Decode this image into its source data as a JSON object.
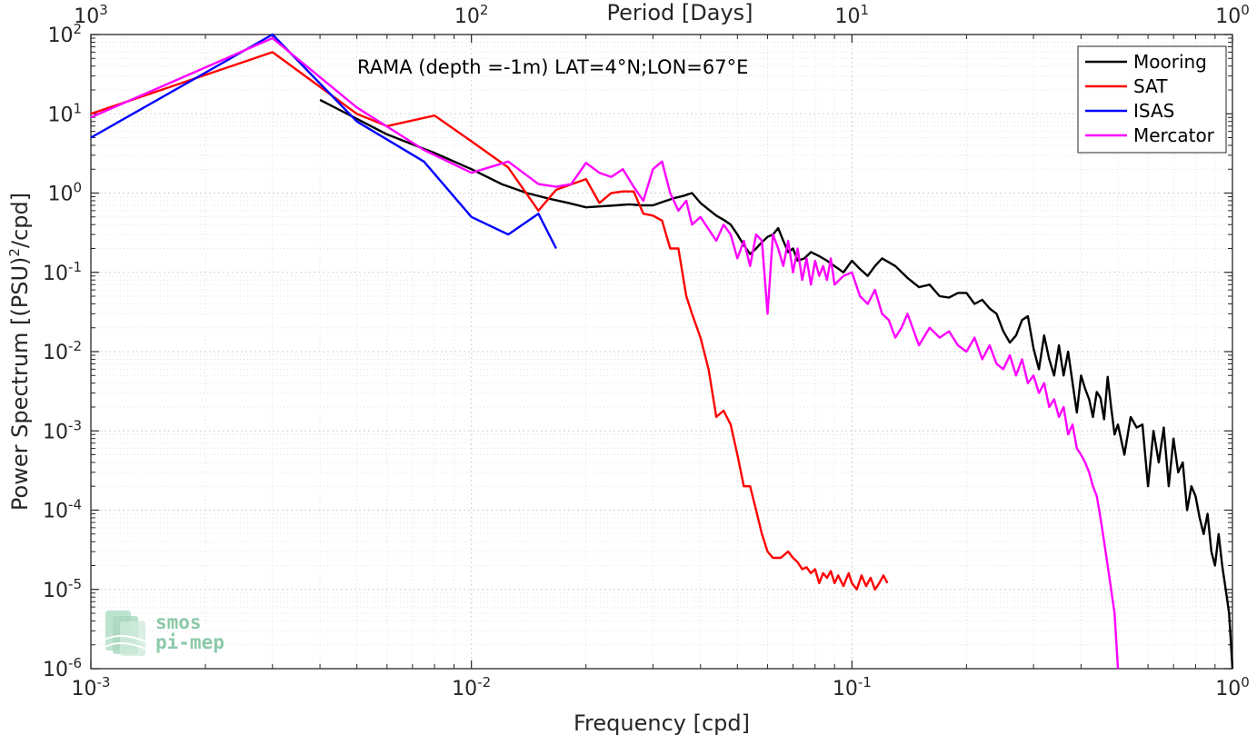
{
  "chart_data": {
    "type": "line",
    "title": "",
    "annotation": "RAMA (depth =-1m) LAT=4°N;LON=67°E",
    "xlabel": "Frequency [cpd]",
    "ylabel": "Power Spectrum [(PSU)",
    "ylabel_sup": "2",
    "ylabel_tail": "/cpd]",
    "top_xlabel": "Period [Days]",
    "x_scale": "log",
    "y_scale": "log",
    "xlim": [
      0.001,
      1
    ],
    "ylim": [
      1e-06,
      100
    ],
    "grid": true,
    "legend_position": "top-right",
    "x_ticks": [
      {
        "value": 0.001,
        "base": "10",
        "exp": "-3"
      },
      {
        "value": 0.01,
        "base": "10",
        "exp": "-2"
      },
      {
        "value": 0.1,
        "base": "10",
        "exp": "-1"
      },
      {
        "value": 1,
        "base": "10",
        "exp": "0"
      }
    ],
    "top_ticks": [
      {
        "value": 0.001,
        "base": "10",
        "exp": "3"
      },
      {
        "value": 0.01,
        "base": "10",
        "exp": "2"
      },
      {
        "value": 0.1,
        "base": "10",
        "exp": "1"
      },
      {
        "value": 1,
        "base": "10",
        "exp": "0"
      }
    ],
    "y_ticks": [
      {
        "value": 100,
        "base": "10",
        "exp": "2"
      },
      {
        "value": 10,
        "base": "10",
        "exp": "1"
      },
      {
        "value": 1,
        "base": "10",
        "exp": "0"
      },
      {
        "value": 0.1,
        "base": "10",
        "exp": "-1"
      },
      {
        "value": 0.01,
        "base": "10",
        "exp": "-2"
      },
      {
        "value": 0.001,
        "base": "10",
        "exp": "-3"
      },
      {
        "value": 0.0001,
        "base": "10",
        "exp": "-4"
      },
      {
        "value": 1e-05,
        "base": "10",
        "exp": "-5"
      },
      {
        "value": 1e-06,
        "base": "10",
        "exp": "-6"
      }
    ],
    "series": [
      {
        "name": "Mooring",
        "color": "#000000",
        "x": [
          0.004,
          0.006,
          0.008,
          0.01,
          0.012,
          0.014,
          0.016,
          0.018,
          0.02,
          0.022,
          0.024,
          0.026,
          0.028,
          0.03,
          0.032,
          0.034,
          0.036,
          0.038,
          0.04,
          0.042,
          0.044,
          0.046,
          0.048,
          0.05,
          0.052,
          0.054,
          0.056,
          0.058,
          0.06,
          0.062,
          0.064,
          0.066,
          0.068,
          0.07,
          0.072,
          0.075,
          0.078,
          0.082,
          0.086,
          0.09,
          0.095,
          0.1,
          0.105,
          0.11,
          0.115,
          0.12,
          0.13,
          0.14,
          0.15,
          0.16,
          0.17,
          0.18,
          0.19,
          0.2,
          0.21,
          0.22,
          0.23,
          0.24,
          0.25,
          0.26,
          0.27,
          0.28,
          0.29,
          0.3,
          0.31,
          0.32,
          0.33,
          0.34,
          0.35,
          0.36,
          0.37,
          0.38,
          0.39,
          0.4,
          0.41,
          0.42,
          0.43,
          0.44,
          0.45,
          0.46,
          0.47,
          0.48,
          0.49,
          0.5,
          0.52,
          0.54,
          0.56,
          0.58,
          0.6,
          0.62,
          0.64,
          0.66,
          0.68,
          0.7,
          0.72,
          0.74,
          0.76,
          0.78,
          0.8,
          0.82,
          0.84,
          0.86,
          0.88,
          0.9,
          0.92,
          0.94,
          0.96,
          0.98,
          1.0
        ],
        "y": [
          15,
          5.5,
          3.2,
          2.0,
          1.3,
          1.0,
          0.85,
          0.75,
          0.66,
          0.68,
          0.7,
          0.72,
          0.7,
          0.7,
          0.78,
          0.86,
          0.92,
          1.0,
          0.75,
          0.62,
          0.52,
          0.46,
          0.4,
          0.3,
          0.22,
          0.17,
          0.2,
          0.24,
          0.28,
          0.3,
          0.36,
          0.25,
          0.18,
          0.2,
          0.14,
          0.15,
          0.18,
          0.16,
          0.14,
          0.12,
          0.1,
          0.14,
          0.11,
          0.09,
          0.12,
          0.15,
          0.12,
          0.085,
          0.065,
          0.07,
          0.05,
          0.048,
          0.055,
          0.055,
          0.04,
          0.045,
          0.035,
          0.03,
          0.018,
          0.013,
          0.016,
          0.025,
          0.028,
          0.011,
          0.006,
          0.016,
          0.008,
          0.005,
          0.012,
          0.005,
          0.01,
          0.004,
          0.0017,
          0.005,
          0.0034,
          0.0025,
          0.0015,
          0.0031,
          0.0026,
          0.0014,
          0.0048,
          0.002,
          0.0009,
          0.0012,
          0.0005,
          0.0015,
          0.0011,
          0.0012,
          0.0002,
          0.001,
          0.0004,
          0.0011,
          0.0002,
          0.0008,
          0.0003,
          0.0004,
          0.0001,
          0.0002,
          0.00015,
          8e-05,
          5e-05,
          9e-05,
          3e-05,
          2e-05,
          5e-05,
          2e-05,
          1e-05,
          5e-06,
          1e-06
        ]
      },
      {
        "name": "SAT",
        "color": "#ff0000",
        "x": [
          0.001,
          0.003,
          0.005,
          0.006,
          0.008,
          0.01,
          0.0125,
          0.015,
          0.0167,
          0.02,
          0.0217,
          0.0233,
          0.025,
          0.0267,
          0.0283,
          0.03,
          0.0317,
          0.0333,
          0.035,
          0.0367,
          0.038,
          0.04,
          0.042,
          0.044,
          0.046,
          0.048,
          0.05,
          0.052,
          0.054,
          0.056,
          0.058,
          0.06,
          0.062,
          0.065,
          0.068,
          0.07,
          0.072,
          0.074,
          0.076,
          0.078,
          0.08,
          0.082,
          0.084,
          0.086,
          0.088,
          0.09,
          0.092,
          0.095,
          0.098,
          0.1,
          0.103,
          0.106,
          0.109,
          0.112,
          0.115,
          0.118,
          0.121,
          0.124
        ],
        "y": [
          10,
          60,
          10,
          7,
          9.5,
          4.5,
          2.1,
          0.6,
          1.1,
          1.5,
          0.75,
          1.0,
          1.05,
          1.05,
          0.55,
          0.52,
          0.45,
          0.2,
          0.2,
          0.05,
          0.03,
          0.015,
          0.006,
          0.0015,
          0.0018,
          0.0012,
          0.0005,
          0.0002,
          0.0002,
          0.0001,
          5e-05,
          3e-05,
          2.5e-05,
          2.5e-05,
          3e-05,
          2.5e-05,
          2.2e-05,
          1.8e-05,
          1.9e-05,
          1.6e-05,
          1.8e-05,
          1.2e-05,
          1.6e-05,
          1.4e-05,
          1.7e-05,
          1.2e-05,
          1.5e-05,
          1.1e-05,
          1.6e-05,
          1.2e-05,
          1e-05,
          1.5e-05,
          1.1e-05,
          1.4e-05,
          1e-05,
          1.2e-05,
          1.5e-05,
          1.2e-05
        ]
      },
      {
        "name": "ISAS",
        "color": "#0000ff",
        "x": [
          0.001,
          0.003,
          0.005,
          0.0075,
          0.01,
          0.0125,
          0.015,
          0.0167
        ],
        "y": [
          5,
          100,
          8,
          2.5,
          0.5,
          0.3,
          0.55,
          0.2
        ]
      },
      {
        "name": "Mercator",
        "color": "#ff00ff",
        "x": [
          0.001,
          0.003,
          0.005,
          0.0075,
          0.01,
          0.0125,
          0.015,
          0.0167,
          0.0183,
          0.02,
          0.0217,
          0.0233,
          0.025,
          0.0267,
          0.0283,
          0.03,
          0.0317,
          0.0333,
          0.035,
          0.0367,
          0.038,
          0.04,
          0.042,
          0.044,
          0.046,
          0.048,
          0.05,
          0.052,
          0.054,
          0.056,
          0.058,
          0.06,
          0.062,
          0.064,
          0.066,
          0.068,
          0.07,
          0.072,
          0.074,
          0.076,
          0.078,
          0.08,
          0.082,
          0.084,
          0.086,
          0.088,
          0.09,
          0.095,
          0.1,
          0.105,
          0.11,
          0.115,
          0.12,
          0.125,
          0.13,
          0.135,
          0.14,
          0.15,
          0.16,
          0.17,
          0.18,
          0.19,
          0.2,
          0.21,
          0.22,
          0.23,
          0.24,
          0.25,
          0.26,
          0.27,
          0.28,
          0.29,
          0.3,
          0.31,
          0.32,
          0.33,
          0.34,
          0.35,
          0.36,
          0.37,
          0.38,
          0.39,
          0.4,
          0.41,
          0.42,
          0.43,
          0.44,
          0.45,
          0.46,
          0.47,
          0.48,
          0.49,
          0.5
        ],
        "y": [
          9,
          90,
          12,
          3.5,
          1.8,
          2.5,
          1.3,
          1.2,
          1.3,
          2.4,
          1.8,
          1.6,
          2.0,
          1.2,
          0.8,
          2.0,
          2.5,
          1.0,
          0.6,
          0.8,
          0.4,
          0.5,
          0.35,
          0.25,
          0.4,
          0.3,
          0.15,
          0.25,
          0.12,
          0.3,
          0.25,
          0.03,
          0.3,
          0.2,
          0.12,
          0.25,
          0.1,
          0.2,
          0.08,
          0.15,
          0.07,
          0.14,
          0.09,
          0.12,
          0.08,
          0.15,
          0.07,
          0.09,
          0.1,
          0.05,
          0.04,
          0.06,
          0.03,
          0.025,
          0.015,
          0.02,
          0.03,
          0.012,
          0.02,
          0.015,
          0.018,
          0.012,
          0.01,
          0.015,
          0.008,
          0.012,
          0.007,
          0.006,
          0.009,
          0.005,
          0.008,
          0.004,
          0.005,
          0.003,
          0.004,
          0.002,
          0.0025,
          0.0015,
          0.002,
          0.0009,
          0.0012,
          0.0006,
          0.0005,
          0.0004,
          0.0003,
          0.0002,
          0.00015,
          8e-05,
          4e-05,
          2e-05,
          1e-05,
          5e-06,
          1e-06
        ]
      }
    ]
  },
  "logo": {
    "line1": "smos",
    "line2": "pi-mep"
  }
}
